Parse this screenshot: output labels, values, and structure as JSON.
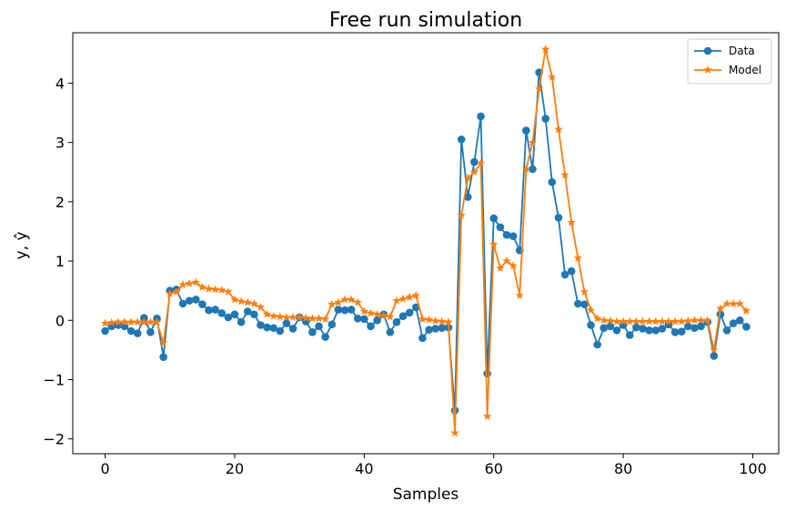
{
  "chart_data": {
    "type": "line",
    "title": "Free run simulation",
    "xlabel": "Samples",
    "ylabel": "y, ŷ",
    "xlim": [
      -5,
      104
    ],
    "ylim": [
      -2.25,
      4.85
    ],
    "xticks": [
      0,
      20,
      40,
      60,
      80,
      100
    ],
    "yticks": [
      -2,
      -1,
      0,
      1,
      2,
      3,
      4
    ],
    "legend_position": "top-right",
    "grid": false,
    "x": [
      0,
      1,
      2,
      3,
      4,
      5,
      6,
      7,
      8,
      9,
      10,
      11,
      12,
      13,
      14,
      15,
      16,
      17,
      18,
      19,
      20,
      21,
      22,
      23,
      24,
      25,
      26,
      27,
      28,
      29,
      30,
      31,
      32,
      33,
      34,
      35,
      36,
      37,
      38,
      39,
      40,
      41,
      42,
      43,
      44,
      45,
      46,
      47,
      48,
      49,
      50,
      51,
      52,
      53,
      54,
      55,
      56,
      57,
      58,
      59,
      60,
      61,
      62,
      63,
      64,
      65,
      66,
      67,
      68,
      69,
      70,
      71,
      72,
      73,
      74,
      75,
      76,
      77,
      78,
      79,
      80,
      81,
      82,
      83,
      84,
      85,
      86,
      87,
      88,
      89,
      90,
      91,
      92,
      93,
      94,
      95,
      96,
      97,
      98,
      99
    ],
    "series": [
      {
        "name": "Data",
        "color": "#1f77b4",
        "marker": "circle",
        "values": [
          -0.18,
          -0.1,
          -0.08,
          -0.1,
          -0.18,
          -0.22,
          0.04,
          -0.2,
          0.03,
          -0.62,
          0.5,
          0.52,
          0.28,
          0.33,
          0.35,
          0.27,
          0.17,
          0.18,
          0.12,
          0.05,
          0.1,
          -0.03,
          0.15,
          0.1,
          -0.08,
          -0.12,
          -0.13,
          -0.18,
          -0.05,
          -0.14,
          0.05,
          -0.02,
          -0.2,
          -0.1,
          -0.28,
          -0.07,
          0.18,
          0.17,
          0.18,
          0.03,
          0.02,
          -0.1,
          0.0,
          0.1,
          -0.2,
          -0.03,
          0.07,
          0.13,
          0.22,
          -0.3,
          -0.16,
          -0.14,
          -0.13,
          -0.12,
          -1.52,
          3.05,
          2.08,
          2.67,
          3.44,
          -0.9,
          1.72,
          1.57,
          1.44,
          1.42,
          1.18,
          3.2,
          2.55,
          4.18,
          3.4,
          2.33,
          1.73,
          0.77,
          0.83,
          0.28,
          0.27,
          -0.08,
          -0.41,
          -0.13,
          -0.1,
          -0.17,
          -0.08,
          -0.25,
          -0.12,
          -0.14,
          -0.17,
          -0.17,
          -0.14,
          -0.07,
          -0.2,
          -0.19,
          -0.1,
          -0.13,
          -0.1,
          -0.03,
          -0.6,
          0.1,
          -0.17,
          -0.05,
          0.0,
          -0.11
        ]
      },
      {
        "name": "Model",
        "color": "#ff7f0e",
        "marker": "star",
        "values": [
          -0.05,
          -0.04,
          -0.03,
          -0.03,
          -0.03,
          -0.03,
          -0.03,
          -0.03,
          -0.03,
          -0.38,
          0.45,
          0.48,
          0.6,
          0.62,
          0.64,
          0.56,
          0.53,
          0.52,
          0.51,
          0.48,
          0.35,
          0.32,
          0.3,
          0.28,
          0.22,
          0.1,
          0.07,
          0.06,
          0.05,
          0.05,
          0.05,
          0.04,
          0.03,
          0.03,
          0.02,
          0.27,
          0.3,
          0.35,
          0.35,
          0.3,
          0.15,
          0.12,
          0.1,
          0.08,
          0.06,
          0.33,
          0.36,
          0.39,
          0.42,
          0.02,
          0.01,
          -0.01,
          -0.02,
          -0.03,
          -1.9,
          1.77,
          2.4,
          2.5,
          2.65,
          -1.62,
          1.28,
          0.88,
          1.0,
          0.92,
          0.42,
          2.55,
          3.0,
          3.9,
          4.57,
          4.1,
          3.22,
          2.45,
          1.65,
          1.05,
          0.48,
          0.17,
          0.03,
          0.0,
          -0.01,
          -0.02,
          -0.02,
          -0.02,
          -0.02,
          -0.02,
          -0.02,
          -0.02,
          -0.02,
          -0.02,
          -0.02,
          -0.02,
          -0.01,
          0.0,
          0.0,
          0.0,
          -0.5,
          0.2,
          0.28,
          0.28,
          0.28,
          0.16
        ]
      }
    ]
  }
}
